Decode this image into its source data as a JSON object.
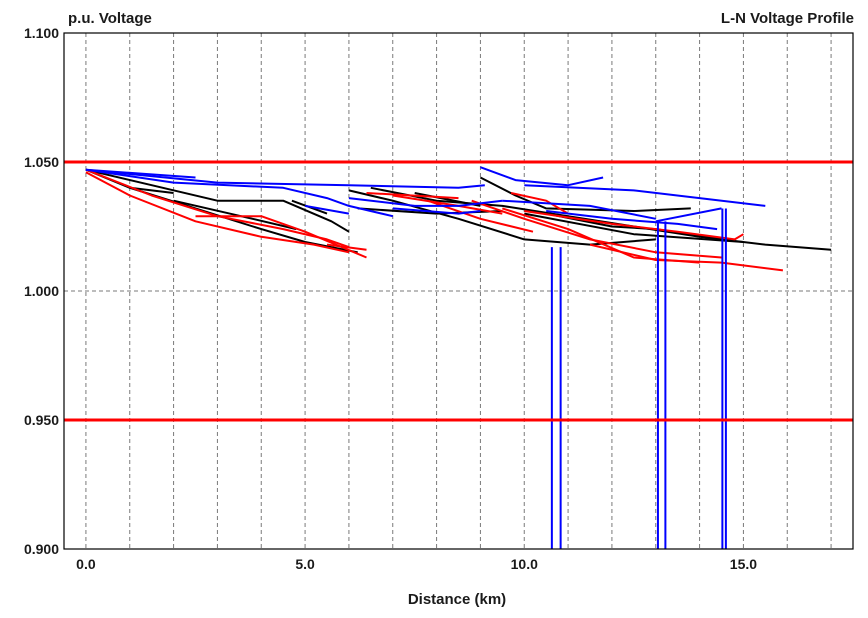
{
  "chart_data": {
    "type": "line",
    "title": "L-N Voltage Profile",
    "ylabel": "p.u. Voltage",
    "xlabel": "Distance (km)",
    "xlim": [
      -0.5,
      17.5
    ],
    "ylim": [
      0.9,
      1.1
    ],
    "x_ticks": [
      0,
      5,
      10,
      15
    ],
    "x_tick_labels": [
      "0.0",
      "5.0",
      "10.0",
      "15.0"
    ],
    "y_ticks": [
      0.9,
      0.95,
      1.0,
      1.05,
      1.1
    ],
    "y_tick_labels": [
      "0.900",
      "0.950",
      "1.000",
      "1.050",
      "1.100"
    ],
    "grid": true,
    "x_minor_grid_step": 1,
    "limit_lines": [
      {
        "y": 1.05,
        "color": "#ff0000"
      },
      {
        "y": 0.95,
        "color": "#ff0000"
      }
    ],
    "phase_colors": {
      "a": "#000000",
      "b": "#ff0000",
      "c": "#0000ff"
    },
    "series": [
      {
        "phase": "a",
        "points": [
          [
            0,
            1.047
          ],
          [
            1.5,
            1.041
          ],
          [
            3.0,
            1.035
          ],
          [
            4.5,
            1.035
          ],
          [
            5.6,
            1.027
          ],
          [
            6.0,
            1.023
          ]
        ]
      },
      {
        "phase": "a",
        "points": [
          [
            0,
            1.047
          ],
          [
            1.0,
            1.04
          ],
          [
            2.5,
            1.032
          ],
          [
            4.0,
            1.024
          ],
          [
            5.0,
            1.019
          ],
          [
            6.2,
            1.015
          ]
        ]
      },
      {
        "phase": "a",
        "points": [
          [
            1.0,
            1.04
          ],
          [
            2.0,
            1.038
          ]
        ]
      },
      {
        "phase": "a",
        "points": [
          [
            2.0,
            1.035
          ],
          [
            3.8,
            1.028
          ],
          [
            4.8,
            1.024
          ]
        ]
      },
      {
        "phase": "a",
        "points": [
          [
            4.7,
            1.035
          ],
          [
            5.5,
            1.03
          ]
        ]
      },
      {
        "phase": "a",
        "points": [
          [
            6.0,
            1.039
          ],
          [
            7.0,
            1.035
          ],
          [
            8.5,
            1.028
          ],
          [
            10.0,
            1.02
          ],
          [
            11.5,
            1.018
          ],
          [
            13.0,
            1.02
          ]
        ]
      },
      {
        "phase": "a",
        "points": [
          [
            6.5,
            1.04
          ],
          [
            8.0,
            1.035
          ],
          [
            9.5,
            1.033
          ],
          [
            11.0,
            1.029
          ],
          [
            12.5,
            1.025
          ],
          [
            14.0,
            1.021
          ],
          [
            15.5,
            1.018
          ],
          [
            17.0,
            1.016
          ]
        ]
      },
      {
        "phase": "a",
        "points": [
          [
            9.0,
            1.044
          ],
          [
            9.8,
            1.037
          ],
          [
            10.5,
            1.032
          ],
          [
            12.5,
            1.031
          ],
          [
            13.8,
            1.032
          ]
        ]
      },
      {
        "phase": "a",
        "points": [
          [
            10.5,
            1.03
          ],
          [
            12.0,
            1.025
          ],
          [
            13.0,
            1.024
          ],
          [
            14.5,
            1.02
          ]
        ]
      },
      {
        "phase": "a",
        "points": [
          [
            7.5,
            1.038
          ],
          [
            9.0,
            1.033
          ]
        ]
      },
      {
        "phase": "a",
        "points": [
          [
            6.2,
            1.032
          ],
          [
            8.0,
            1.03
          ],
          [
            9.5,
            1.031
          ]
        ]
      },
      {
        "phase": "a",
        "points": [
          [
            10.0,
            1.03
          ],
          [
            12.5,
            1.022
          ],
          [
            15.0,
            1.019
          ]
        ]
      },
      {
        "phase": "b",
        "points": [
          [
            0,
            1.047
          ],
          [
            1.5,
            1.037
          ],
          [
            3.0,
            1.029
          ],
          [
            4.5,
            1.024
          ],
          [
            5.5,
            1.02
          ],
          [
            6.0,
            1.017
          ]
        ]
      },
      {
        "phase": "b",
        "points": [
          [
            0,
            1.046
          ],
          [
            1.0,
            1.037
          ],
          [
            2.5,
            1.027
          ],
          [
            4.0,
            1.021
          ],
          [
            5.2,
            1.018
          ],
          [
            6.0,
            1.015
          ]
        ]
      },
      {
        "phase": "b",
        "points": [
          [
            2.5,
            1.029
          ],
          [
            4.0,
            1.029
          ],
          [
            5.0,
            1.023
          ],
          [
            6.4,
            1.013
          ]
        ]
      },
      {
        "phase": "b",
        "points": [
          [
            5.5,
            1.018
          ],
          [
            6.4,
            1.016
          ]
        ]
      },
      {
        "phase": "b",
        "points": [
          [
            7.0,
            1.037
          ],
          [
            8.5,
            1.033
          ],
          [
            9.5,
            1.03
          ]
        ]
      },
      {
        "phase": "b",
        "points": [
          [
            8.8,
            1.035
          ],
          [
            10.0,
            1.028
          ],
          [
            11.5,
            1.02
          ],
          [
            13.0,
            1.015
          ],
          [
            14.5,
            1.013
          ]
        ]
      },
      {
        "phase": "b",
        "points": [
          [
            9.5,
            1.032
          ],
          [
            11.0,
            1.024
          ],
          [
            12.5,
            1.013
          ],
          [
            14.0,
            1.011
          ]
        ]
      },
      {
        "phase": "b",
        "points": [
          [
            10.0,
            1.031
          ],
          [
            12.0,
            1.026
          ],
          [
            13.5,
            1.023
          ],
          [
            14.8,
            1.02
          ],
          [
            15.0,
            1.022
          ]
        ]
      },
      {
        "phase": "b",
        "points": [
          [
            11.5,
            1.018
          ],
          [
            13.0,
            1.012
          ],
          [
            14.5,
            1.011
          ],
          [
            15.9,
            1.008
          ]
        ]
      },
      {
        "phase": "b",
        "points": [
          [
            9.7,
            1.038
          ],
          [
            10.5,
            1.035
          ],
          [
            11.0,
            1.03
          ]
        ]
      },
      {
        "phase": "b",
        "points": [
          [
            7.8,
            1.035
          ],
          [
            9.0,
            1.028
          ],
          [
            10.2,
            1.023
          ]
        ]
      },
      {
        "phase": "b",
        "points": [
          [
            6.4,
            1.038
          ],
          [
            8.5,
            1.036
          ]
        ]
      },
      {
        "phase": "c",
        "points": [
          [
            0,
            1.047
          ],
          [
            2.5,
            1.044
          ]
        ]
      },
      {
        "phase": "c",
        "points": [
          [
            0,
            1.047
          ],
          [
            3.0,
            1.042
          ],
          [
            6.0,
            1.041
          ],
          [
            8.5,
            1.04
          ],
          [
            9.1,
            1.041
          ]
        ]
      },
      {
        "phase": "c",
        "points": [
          [
            0,
            1.047
          ],
          [
            2.0,
            1.042
          ],
          [
            4.5,
            1.04
          ],
          [
            5.5,
            1.036
          ],
          [
            6.0,
            1.033
          ],
          [
            7.0,
            1.029
          ]
        ]
      },
      {
        "phase": "c",
        "points": [
          [
            5.0,
            1.033
          ],
          [
            6.0,
            1.03
          ]
        ]
      },
      {
        "phase": "c",
        "points": [
          [
            6.0,
            1.036
          ],
          [
            7.5,
            1.033
          ],
          [
            8.5,
            1.033
          ],
          [
            9.5,
            1.035
          ]
        ]
      },
      {
        "phase": "c",
        "points": [
          [
            9.0,
            1.048
          ],
          [
            9.8,
            1.043
          ],
          [
            11.0,
            1.041
          ],
          [
            11.8,
            1.044
          ]
        ]
      },
      {
        "phase": "c",
        "points": [
          [
            10.0,
            1.041
          ],
          [
            12.5,
            1.039
          ],
          [
            14.0,
            1.036
          ],
          [
            15.5,
            1.033
          ]
        ]
      },
      {
        "phase": "c",
        "points": [
          [
            9.5,
            1.035
          ],
          [
            11.5,
            1.033
          ],
          [
            13.0,
            1.028
          ]
        ]
      },
      {
        "phase": "c",
        "points": [
          [
            10.5,
            1.031
          ],
          [
            12.0,
            1.028
          ],
          [
            13.5,
            1.026
          ],
          [
            14.4,
            1.024
          ]
        ]
      },
      {
        "phase": "c",
        "points": [
          [
            7.0,
            1.032
          ],
          [
            8.5,
            1.03
          ],
          [
            9.0,
            1.031
          ]
        ]
      },
      {
        "phase": "c",
        "points": [
          [
            13.0,
            1.027
          ],
          [
            14.5,
            1.032
          ]
        ]
      }
    ],
    "vertical_drops": [
      {
        "phase": "c",
        "x": 10.63,
        "y_top": 1.017,
        "y_bottom": 0.9
      },
      {
        "phase": "c",
        "x": 10.83,
        "y_top": 1.017,
        "y_bottom": 0.9
      },
      {
        "phase": "c",
        "x": 13.05,
        "y_top": 1.027,
        "y_bottom": 0.9
      },
      {
        "phase": "c",
        "x": 13.22,
        "y_top": 1.027,
        "y_bottom": 0.9
      },
      {
        "phase": "c",
        "x": 14.52,
        "y_top": 1.032,
        "y_bottom": 0.9
      },
      {
        "phase": "c",
        "x": 14.6,
        "y_top": 1.032,
        "y_bottom": 0.9
      }
    ]
  }
}
